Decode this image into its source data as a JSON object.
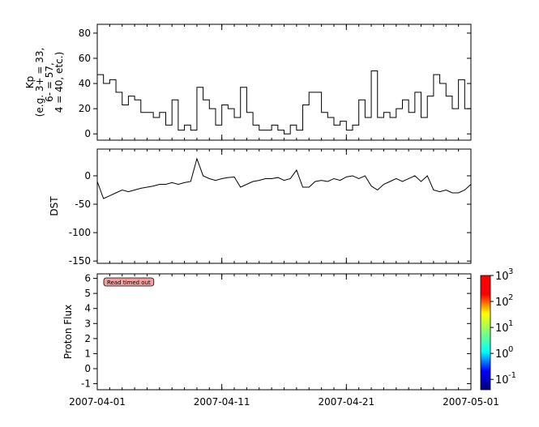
{
  "chart_data": [
    {
      "type": "step",
      "ylabel": [
        "Kp",
        "(e.g. 3+ = 33,",
        "6- = 57,",
        "4 = 40, etc.)"
      ],
      "color": "#000000",
      "x": [
        0,
        0.5,
        1,
        1.5,
        2,
        2.5,
        3,
        3.5,
        4,
        4.5,
        5,
        5.5,
        6,
        6.5,
        7,
        7.5,
        8,
        8.5,
        9,
        9.5,
        10,
        10.5,
        11,
        11.5,
        12,
        12.5,
        13,
        13.5,
        14,
        14.5,
        15,
        15.5,
        16,
        16.5,
        17,
        17.5,
        18,
        18.5,
        19,
        19.5,
        20,
        20.5,
        21,
        21.5,
        22,
        22.5,
        23,
        23.5,
        24,
        24.5,
        25,
        25.5,
        26,
        26.5,
        27,
        27.5,
        28,
        28.5,
        29,
        29.5,
        30
      ],
      "values": [
        47,
        40,
        43,
        33,
        23,
        30,
        27,
        17,
        17,
        13,
        17,
        7,
        27,
        3,
        7,
        3,
        37,
        27,
        20,
        7,
        23,
        20,
        13,
        37,
        17,
        7,
        3,
        3,
        7,
        3,
        0,
        7,
        3,
        23,
        33,
        33,
        17,
        13,
        7,
        10,
        3,
        7,
        27,
        13,
        50,
        13,
        17,
        13,
        20,
        27,
        17,
        33,
        13,
        30,
        47,
        40,
        30,
        20,
        43,
        20,
        13
      ],
      "xlim": [
        0,
        30
      ],
      "xticks": [
        0,
        10,
        20,
        30
      ],
      "xminorticks": [
        0,
        1,
        2,
        3,
        4,
        5,
        6,
        7,
        8,
        9,
        10,
        11,
        12,
        13,
        14,
        15,
        16,
        17,
        18,
        19,
        20,
        21,
        22,
        23,
        24,
        25,
        26,
        27,
        28,
        29,
        30
      ],
      "ylim": [
        -5,
        87
      ],
      "yticks": [
        0,
        20,
        40,
        60,
        80
      ]
    },
    {
      "type": "line",
      "ylabel": [
        "DST"
      ],
      "color": "#000000",
      "x": [
        0,
        0.5,
        1,
        1.5,
        2,
        2.5,
        3,
        3.5,
        4,
        4.5,
        5,
        5.5,
        6,
        6.5,
        7,
        7.5,
        8,
        8.5,
        9,
        9.5,
        10,
        10.5,
        11,
        11.5,
        12,
        12.5,
        13,
        13.5,
        14,
        14.5,
        15,
        15.5,
        16,
        16.5,
        17,
        17.5,
        18,
        18.5,
        19,
        19.5,
        20,
        20.5,
        21,
        21.5,
        22,
        22.5,
        23,
        23.5,
        24,
        24.5,
        25,
        25.5,
        26,
        26.5,
        27,
        27.5,
        28,
        28.5,
        29,
        29.5,
        30
      ],
      "values": [
        -10,
        -40,
        -35,
        -30,
        -25,
        -28,
        -25,
        -22,
        -20,
        -18,
        -15,
        -15,
        -12,
        -15,
        -12,
        -10,
        30,
        0,
        -5,
        -8,
        -5,
        -3,
        -2,
        -20,
        -15,
        -10,
        -8,
        -5,
        -5,
        -3,
        -8,
        -5,
        10,
        -20,
        -20,
        -10,
        -8,
        -10,
        -5,
        -8,
        -2,
        0,
        -5,
        0,
        -18,
        -25,
        -15,
        -10,
        -5,
        -10,
        -5,
        0,
        -10,
        0,
        -25,
        -28,
        -25,
        -30,
        -30,
        -25,
        -15
      ],
      "xlim": [
        0,
        30
      ],
      "xticks": [
        0,
        10,
        20,
        30
      ],
      "xminorticks": [
        0,
        1,
        2,
        3,
        4,
        5,
        6,
        7,
        8,
        9,
        10,
        11,
        12,
        13,
        14,
        15,
        16,
        17,
        18,
        19,
        20,
        21,
        22,
        23,
        24,
        25,
        26,
        27,
        28,
        29,
        30
      ],
      "ylim": [
        -154,
        47
      ],
      "yticks": [
        0,
        -50,
        -100,
        -150
      ]
    },
    {
      "type": "spectrogram",
      "ylabel": [
        "Proton Flux"
      ],
      "annotation": "Read timed out",
      "xlim": [
        0,
        30
      ],
      "xticks": [
        {
          "value": 0,
          "label": "2007-04-01"
        },
        {
          "value": 10,
          "label": "2007-04-11"
        },
        {
          "value": 20,
          "label": "2007-04-21"
        },
        {
          "value": 30,
          "label": "2007-05-01"
        }
      ],
      "xminorticks": [
        0,
        1,
        2,
        3,
        4,
        5,
        6,
        7,
        8,
        9,
        10,
        11,
        12,
        13,
        14,
        15,
        16,
        17,
        18,
        19,
        20,
        21,
        22,
        23,
        24,
        25,
        26,
        27,
        28,
        29,
        30
      ],
      "ylim": [
        -1.4,
        6.3
      ],
      "yticks": [
        -1,
        0,
        1,
        2,
        3,
        4,
        5,
        6
      ],
      "colorbar": {
        "scale": "log",
        "lim": [
          0.04,
          1000
        ],
        "colors": [
          "#00007f",
          "#0000ff",
          "#00ffff",
          "#7fff7f",
          "#ffff00",
          "#ff0000",
          "#ff0000"
        ],
        "ticks": [
          {
            "value": 0.1,
            "label": "10",
            "exponent": "-1"
          },
          {
            "value": 1,
            "label": "10",
            "exponent": "0"
          },
          {
            "value": 10,
            "label": "10",
            "exponent": "1"
          },
          {
            "value": 100,
            "label": "10",
            "exponent": "2"
          },
          {
            "value": 1000,
            "label": "10",
            "exponent": "3"
          }
        ]
      }
    }
  ]
}
